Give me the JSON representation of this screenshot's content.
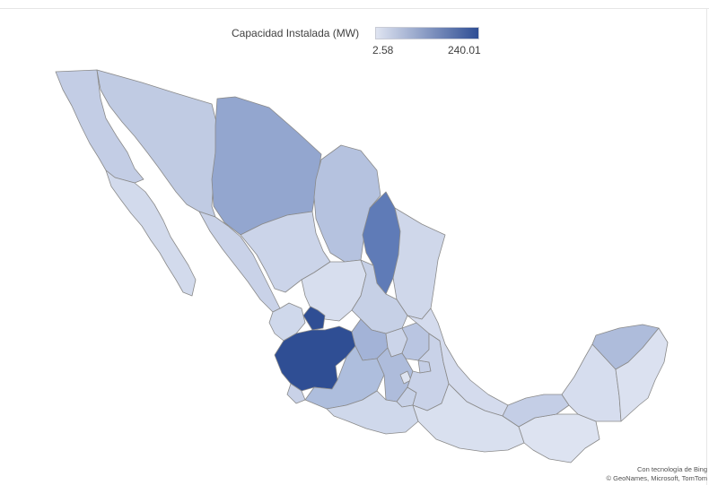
{
  "legend": {
    "title": "Capacidad Instalada (MW)",
    "min_label": "2.58",
    "max_label": "240.01",
    "color_min": "#dfe4f1",
    "color_max": "#2f4e94"
  },
  "attribution": {
    "line1": "Con tecnología de Bing",
    "line2": "© GeoNames, Microsoft, TomTom"
  },
  "map_colors": {
    "baja_california": "#c3cde5",
    "baja_california_sur": "#d2daec",
    "sonora": "#c0cbe3",
    "chihuahua": "#93a6cf",
    "coahuila": "#b5c2df",
    "nuevo_leon": "#5f7bb7",
    "tamaulipas": "#cfd7ea",
    "sinaloa": "#c9d2e8",
    "durango": "#cbd4e9",
    "zacatecas": "#d7deee",
    "san_luis_potosi": "#c6d0e6",
    "nayarit": "#cfd8eb",
    "aguascalientes": "#2f4e94",
    "jalisco": "#2f4e94",
    "guanajuato": "#a3b3d7",
    "queretaro": "#cbd4e9",
    "hidalgo": "#b9c5e1",
    "colima": "#c9d2e8",
    "michoacan": "#aebedd",
    "mexico": "#aebcdb",
    "cdmx": "#dfe4f1",
    "morelos": "#c7d1e7",
    "tlaxcala": "#c4cee6",
    "puebla": "#c9d2e8",
    "veracruz": "#d4dbed",
    "guerrero": "#cfd8eb",
    "oaxaca": "#d9e0ef",
    "chiapas": "#dde3f1",
    "tabasco": "#c4cee6",
    "campeche": "#d6ddee",
    "yucatan": "#aebcdb",
    "quintana_roo": "#dbe1f0"
  }
}
